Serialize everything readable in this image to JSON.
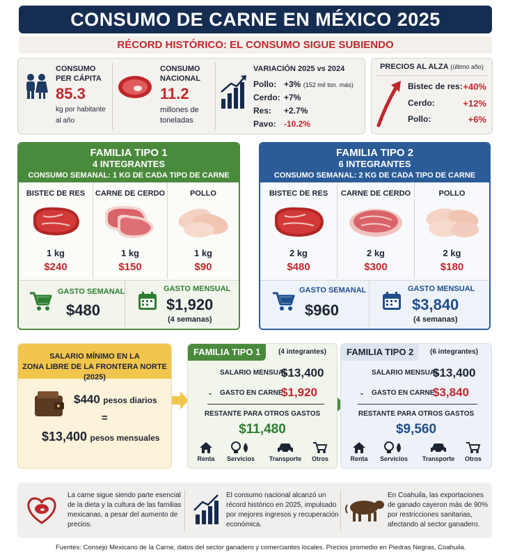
{
  "header": {
    "title": "CONSUMO DE CARNE EN MÉXICO 2025",
    "subtitle": "RÉCORD HISTÓRICO: EL CONSUMO SIGUE SUBIENDO"
  },
  "stats": {
    "per_capita": {
      "label_1": "CONSUMO",
      "label_2": "PER CÁPITA",
      "value": "85.3",
      "unit_1": "kg por habitante",
      "unit_2": "al año"
    },
    "national": {
      "label_1": "CONSUMO",
      "label_2": "NACIONAL",
      "value": "11.2",
      "unit_1": "millones de",
      "unit_2": "toneladas"
    },
    "variation": {
      "title": "VARIACIÓN 2025 vs 2024",
      "rows": [
        {
          "label": "Pollo:",
          "value": "+3%",
          "note": "(152 mil ton. más)"
        },
        {
          "label": "Cerdo:",
          "value": "+7%",
          "note": ""
        },
        {
          "label": "Res:",
          "value": "+2.7%",
          "note": ""
        },
        {
          "label": "Pavo:",
          "value": "-10.2%",
          "note": ""
        }
      ]
    }
  },
  "prices": {
    "title": "PRECIOS AL ALZA",
    "title_note": "(último año)",
    "rows": [
      {
        "label": "Bistec de res:",
        "value": "+40%"
      },
      {
        "label": "Cerdo:",
        "value": "+12%"
      },
      {
        "label": "Pollo:",
        "value": "+6%"
      }
    ]
  },
  "family1": {
    "title": "FAMILIA TIPO 1",
    "members": "4 INTEGRANTES",
    "weekly": "CONSUMO SEMANAL: 1 KG DE CADA TIPO DE CARNE",
    "items": [
      {
        "name": "BISTEC DE RES",
        "qty": "1 kg",
        "cost": "$240"
      },
      {
        "name": "CARNE DE CERDO",
        "qty": "1 kg",
        "cost": "$150"
      },
      {
        "name": "POLLO",
        "qty": "1 kg",
        "cost": "$90"
      }
    ],
    "weekly_spend_label": "GASTO SEMANAL",
    "weekly_spend": "$480",
    "monthly_spend_label": "GASTO MENSUAL",
    "monthly_spend": "$1,920",
    "monthly_note": "(4 semanas)"
  },
  "family2": {
    "title": "FAMILIA TIPO 2",
    "members": "6 INTEGRANTES",
    "weekly": "CONSUMO SEMANAL: 2 KG DE CADA TIPO DE CARNE",
    "items": [
      {
        "name": "BISTEC DE RES",
        "qty": "2 kg",
        "cost": "$480"
      },
      {
        "name": "CARNE DE CERDO",
        "qty": "2 kg",
        "cost": "$300"
      },
      {
        "name": "POLLO",
        "qty": "2 kg",
        "cost": "$180"
      }
    ],
    "weekly_spend_label": "GASTO SEMANAL",
    "weekly_spend": "$960",
    "monthly_spend_label": "GASTO MENSUAL",
    "monthly_spend": "$3,840",
    "monthly_note": "(4 semanas)"
  },
  "salary": {
    "head_1": "SALARIO MÍNIMO EN LA",
    "head_2": "ZONA LIBRE DE LA FRONTERA NORTE (2025)",
    "daily_value": "$440",
    "daily_unit": "pesos diarios",
    "equals": "=",
    "monthly_value": "$13,400",
    "monthly_unit": "pesos mensuales"
  },
  "budget1": {
    "tag": "FAMILIA TIPO 1",
    "sub": "(4 integrantes)",
    "salary_label": "SALARIO MENSUAL",
    "salary_value": "$13,400",
    "minus": "-",
    "meat_label": "GASTO EN CARNE",
    "meat_value": "$1,920",
    "rest_label": "RESTANTE PARA OTROS GASTOS",
    "rest_value": "$11,480"
  },
  "budget2": {
    "tag": "FAMILIA TIPO 2",
    "sub": "(6 integrantes)",
    "salary_label": "SALARIO MENSUAL",
    "salary_value": "$13,400",
    "minus": "-",
    "meat_label": "GASTO EN CARNE",
    "meat_value": "$3,840",
    "rest_label": "RESTANTE PARA OTROS GASTOS",
    "rest_value": "$9,560"
  },
  "expense_icons": [
    "Renta",
    "Servicios",
    "Transporte",
    "Otros"
  ],
  "facts": [
    "La carne sigue siendo parte esencial de la dieta y la cultura de las familias mexicanas, a pesar del aumento de precios.",
    "El consumo nacional alcanzó un récord histórico en 2025, impulsado por mejores ingresos y recuperación económica.",
    "En Coahuila, las exportaciones de ganado cayeron más de 90% por restricciones sanitarias, afectando al sector ganadero."
  ],
  "source": "Fuentes: Consejo Mexicano de la Carne, datos del sector ganadero y comerciantes locales. Precios promedio en Piedras Negras, Coahuila.",
  "colors": {
    "navy": "#162d52",
    "red": "#c0272d",
    "green": "#4a8a3c",
    "blue": "#2b5c98",
    "yellow": "#f2c54d"
  }
}
